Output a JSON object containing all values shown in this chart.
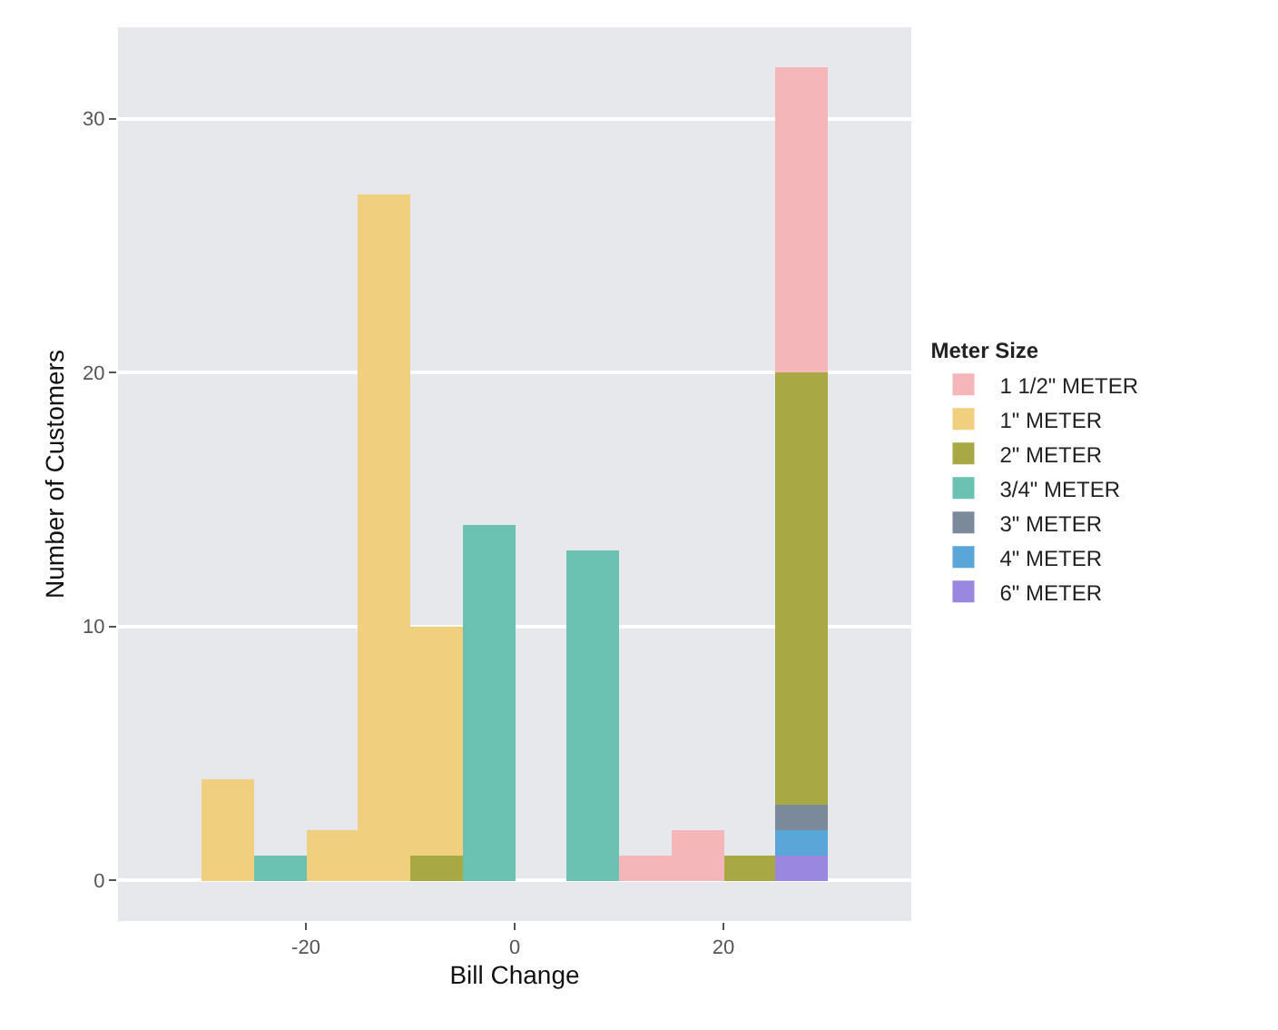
{
  "chart_data": {
    "type": "bar",
    "xlabel": "Bill Change",
    "ylabel": "Number of Customers",
    "legend_title": "Meter Size",
    "x": [
      -27.5,
      -22.5,
      -17.5,
      -12.5,
      -7.5,
      -2.5,
      2.5,
      7.5,
      12.5,
      17.5,
      22.5,
      27.5
    ],
    "stacked": true,
    "series": [
      {
        "name": "1 1/2\" METER",
        "color": "#f4b6b8",
        "values": [
          0,
          0,
          0,
          0,
          0,
          0,
          0,
          0,
          1,
          2,
          0,
          12
        ]
      },
      {
        "name": "1\" METER",
        "color": "#f0d07e",
        "values": [
          4,
          0,
          2,
          27,
          9,
          0,
          0,
          0,
          0,
          0,
          0,
          0
        ]
      },
      {
        "name": "2\" METER",
        "color": "#a8a844",
        "values": [
          0,
          0,
          0,
          0,
          1,
          0,
          0,
          0,
          0,
          0,
          1,
          17
        ]
      },
      {
        "name": "3/4\" METER",
        "color": "#6cc2b2",
        "values": [
          0,
          1,
          0,
          0,
          0,
          14,
          0,
          13,
          0,
          0,
          0,
          0
        ]
      },
      {
        "name": "3\" METER",
        "color": "#7a8a9a",
        "values": [
          0,
          0,
          0,
          0,
          0,
          0,
          0,
          0,
          0,
          0,
          0,
          1
        ]
      },
      {
        "name": "4\" METER",
        "color": "#5aa6d8",
        "values": [
          0,
          0,
          0,
          0,
          0,
          0,
          0,
          0,
          0,
          0,
          0,
          1
        ]
      },
      {
        "name": "6\" METER",
        "color": "#9a88e0",
        "values": [
          0,
          0,
          0,
          0,
          0,
          0,
          0,
          0,
          0,
          0,
          0,
          1
        ]
      }
    ],
    "xlim": [
      -38,
      38
    ],
    "xticks": [
      -20,
      0,
      20
    ],
    "ylim": [
      -1.6,
      33.6
    ],
    "yticks": [
      0,
      10,
      20,
      30
    ],
    "grid": "y",
    "legend": "right"
  }
}
